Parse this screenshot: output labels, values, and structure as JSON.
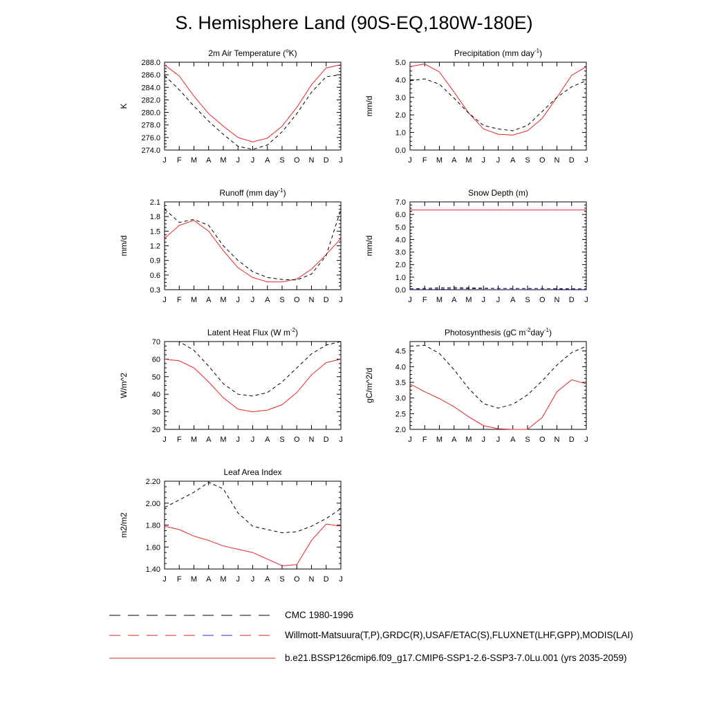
{
  "title": "S. Hemisphere Land (90S-EQ,180W-180E)",
  "legend": [
    {
      "label": "CMC 1980-1996",
      "style": "dash-black"
    },
    {
      "label": "Willmott-Matsuura(T,P),GRDC(R),USAF/ETAC(S),FLUXNET(LHF,GPP),MODIS(LAI)",
      "style": "dash-multi"
    },
    {
      "label": "b.e21.BSSP126cmip6.f09_g17.CMIP6-SSP1-2.6-SSP3-7.0Lu.001 (yrs 2035-2059)",
      "style": "solid-red"
    }
  ],
  "colors": {
    "model": "#e8242a",
    "obs": "#000000",
    "obs_alt": "#2a2ad4"
  },
  "chart_data": [
    {
      "type": "line",
      "title": "2m Air Temperature (",
      "title_sup": "o",
      "title_end": "K)",
      "ylabel": "K",
      "x": [
        "J",
        "F",
        "M",
        "A",
        "M",
        "J",
        "J",
        "A",
        "S",
        "O",
        "N",
        "D",
        "J"
      ],
      "ylim": [
        274,
        288
      ],
      "yticks": [
        274,
        276,
        278,
        280,
        282,
        284,
        286,
        288
      ],
      "ytick_labels": [
        "274.0",
        "276.0",
        "278.0",
        "280.0",
        "282.0",
        "284.0",
        "286.0",
        "288.0"
      ],
      "series": [
        {
          "values": [
            287.6,
            285.8,
            282.6,
            279.8,
            277.8,
            276.0,
            275.3,
            275.9,
            277.8,
            280.8,
            284.4,
            287.1,
            287.6
          ],
          "style": "solid-red"
        },
        {
          "values": [
            285.9,
            283.6,
            281.0,
            278.6,
            276.5,
            274.6,
            274.1,
            274.8,
            276.9,
            279.8,
            283.2,
            285.7,
            286.0
          ],
          "style": "dash-black"
        }
      ]
    },
    {
      "type": "line",
      "title": "Precipitation (mm day",
      "title_sup": "-1",
      "title_end": ")",
      "ylabel": "mm/d",
      "x": [
        "J",
        "F",
        "M",
        "A",
        "M",
        "J",
        "J",
        "A",
        "S",
        "O",
        "N",
        "D",
        "J"
      ],
      "ylim": [
        0,
        5
      ],
      "yticks": [
        0,
        1,
        2,
        3,
        4,
        5
      ],
      "ytick_labels": [
        "0.0",
        "1.0",
        "2.0",
        "3.0",
        "4.0",
        "5.0"
      ],
      "series": [
        {
          "values": [
            4.75,
            4.9,
            4.45,
            3.3,
            2.1,
            1.2,
            0.9,
            0.85,
            1.1,
            1.8,
            3.0,
            4.25,
            4.75
          ],
          "style": "solid-red"
        },
        {
          "values": [
            3.95,
            4.05,
            3.75,
            2.95,
            2.1,
            1.4,
            1.2,
            1.1,
            1.4,
            2.2,
            3.0,
            3.6,
            3.95
          ],
          "style": "dash-black"
        }
      ]
    },
    {
      "type": "line",
      "title": "Runoff (mm day",
      "title_sup": "-1",
      "title_end": ")",
      "ylabel": "mm/d",
      "x": [
        "J",
        "F",
        "M",
        "A",
        "M",
        "J",
        "J",
        "A",
        "S",
        "O",
        "N",
        "D",
        "J"
      ],
      "ylim": [
        0.3,
        2.1
      ],
      "yticks": [
        0.3,
        0.6,
        0.9,
        1.2,
        1.5,
        1.8,
        2.1
      ],
      "ytick_labels": [
        "0.3",
        "0.6",
        "0.9",
        "1.2",
        "1.5",
        "1.8",
        "2.1"
      ],
      "series": [
        {
          "values": [
            1.35,
            1.62,
            1.72,
            1.5,
            1.1,
            0.75,
            0.55,
            0.46,
            0.46,
            0.52,
            0.72,
            1.02,
            1.35
          ],
          "style": "solid-red"
        },
        {
          "values": [
            1.95,
            1.68,
            1.74,
            1.62,
            1.2,
            0.9,
            0.67,
            0.55,
            0.51,
            0.5,
            0.62,
            1.0,
            1.95
          ],
          "style": "dash-black"
        }
      ]
    },
    {
      "type": "line",
      "title": "Snow Depth (m)",
      "title_sup": "",
      "title_end": "",
      "ylabel": "mm/d",
      "x": [
        "J",
        "F",
        "M",
        "A",
        "M",
        "J",
        "J",
        "A",
        "S",
        "O",
        "N",
        "D",
        "J"
      ],
      "ylim": [
        0,
        7
      ],
      "yticks": [
        0,
        1,
        2,
        3,
        4,
        5,
        6,
        7
      ],
      "ytick_labels": [
        "0.0",
        "1.0",
        "2.0",
        "3.0",
        "4.0",
        "5.0",
        "6.0",
        "7.0"
      ],
      "series": [
        {
          "values": [
            6.35,
            6.35,
            6.35,
            6.35,
            6.35,
            6.35,
            6.35,
            6.35,
            6.35,
            6.35,
            6.35,
            6.35,
            6.35
          ],
          "style": "solid-red"
        },
        {
          "values": [
            0.06,
            0.1,
            0.15,
            0.17,
            0.15,
            0.12,
            0.1,
            0.09,
            0.09,
            0.09,
            0.08,
            0.07,
            0.06
          ],
          "style": "dash-black"
        },
        {
          "values": [
            0.02,
            0.03,
            0.05,
            0.07,
            0.08,
            0.09,
            0.1,
            0.1,
            0.1,
            0.09,
            0.06,
            0.04,
            0.02
          ],
          "style": "dash-blue"
        }
      ]
    },
    {
      "type": "line",
      "title": "Latent Heat Flux (W m",
      "title_sup": "-2",
      "title_end": ")",
      "ylabel": "W/m^2",
      "x": [
        "J",
        "F",
        "M",
        "A",
        "M",
        "J",
        "J",
        "A",
        "S",
        "O",
        "N",
        "D",
        "J"
      ],
      "ylim": [
        20,
        70
      ],
      "yticks": [
        20,
        30,
        40,
        50,
        60,
        70
      ],
      "ytick_labels": [
        "20",
        "30",
        "40",
        "50",
        "60",
        "70"
      ],
      "series": [
        {
          "values": [
            60,
            59,
            55,
            47,
            38,
            31.5,
            30,
            31,
            34,
            41,
            51,
            58,
            60
          ],
          "style": "solid-red"
        },
        {
          "values": [
            70,
            70,
            65,
            56,
            46,
            40,
            39,
            41,
            47,
            55,
            63,
            68,
            70
          ],
          "style": "dash-black"
        }
      ]
    },
    {
      "type": "line",
      "title": "Photosynthesis (gC m",
      "title_sup": "-2",
      "title_end": "day",
      "title_sup2": "-1",
      "title_end2": ")",
      "ylabel": "gC/m^2/d",
      "x": [
        "J",
        "F",
        "M",
        "A",
        "M",
        "J",
        "J",
        "A",
        "S",
        "O",
        "N",
        "D",
        "J"
      ],
      "ylim": [
        2.0,
        4.8
      ],
      "yticks": [
        2.0,
        2.5,
        3.0,
        3.5,
        4.0,
        4.5
      ],
      "ytick_labels": [
        "2.0",
        "2.5",
        "3.0",
        "3.5",
        "4.0",
        "4.5"
      ],
      "series": [
        {
          "values": [
            3.45,
            3.2,
            2.98,
            2.72,
            2.4,
            2.12,
            2.02,
            2.0,
            2.0,
            2.38,
            3.2,
            3.58,
            3.45
          ],
          "style": "solid-red"
        },
        {
          "values": [
            4.65,
            4.68,
            4.42,
            3.9,
            3.3,
            2.82,
            2.68,
            2.8,
            3.1,
            3.55,
            4.05,
            4.45,
            4.65
          ],
          "style": "dash-black"
        }
      ]
    },
    {
      "type": "line",
      "title": "Leaf Area Index",
      "title_sup": "",
      "title_end": "",
      "ylabel": "m2/m2",
      "x": [
        "J",
        "F",
        "M",
        "A",
        "M",
        "J",
        "J",
        "A",
        "S",
        "O",
        "N",
        "D",
        "J"
      ],
      "ylim": [
        1.4,
        2.2
      ],
      "yticks": [
        1.4,
        1.6,
        1.8,
        2.0,
        2.2
      ],
      "ytick_labels": [
        "1.40",
        "1.60",
        "1.80",
        "2.00",
        "2.20"
      ],
      "series": [
        {
          "values": [
            1.79,
            1.76,
            1.7,
            1.66,
            1.61,
            1.58,
            1.55,
            1.49,
            1.43,
            1.44,
            1.66,
            1.81,
            1.79
          ],
          "style": "solid-red"
        },
        {
          "values": [
            1.96,
            2.03,
            2.1,
            2.19,
            2.13,
            1.91,
            1.79,
            1.76,
            1.73,
            1.74,
            1.79,
            1.86,
            1.95
          ],
          "style": "dash-black"
        }
      ]
    }
  ]
}
